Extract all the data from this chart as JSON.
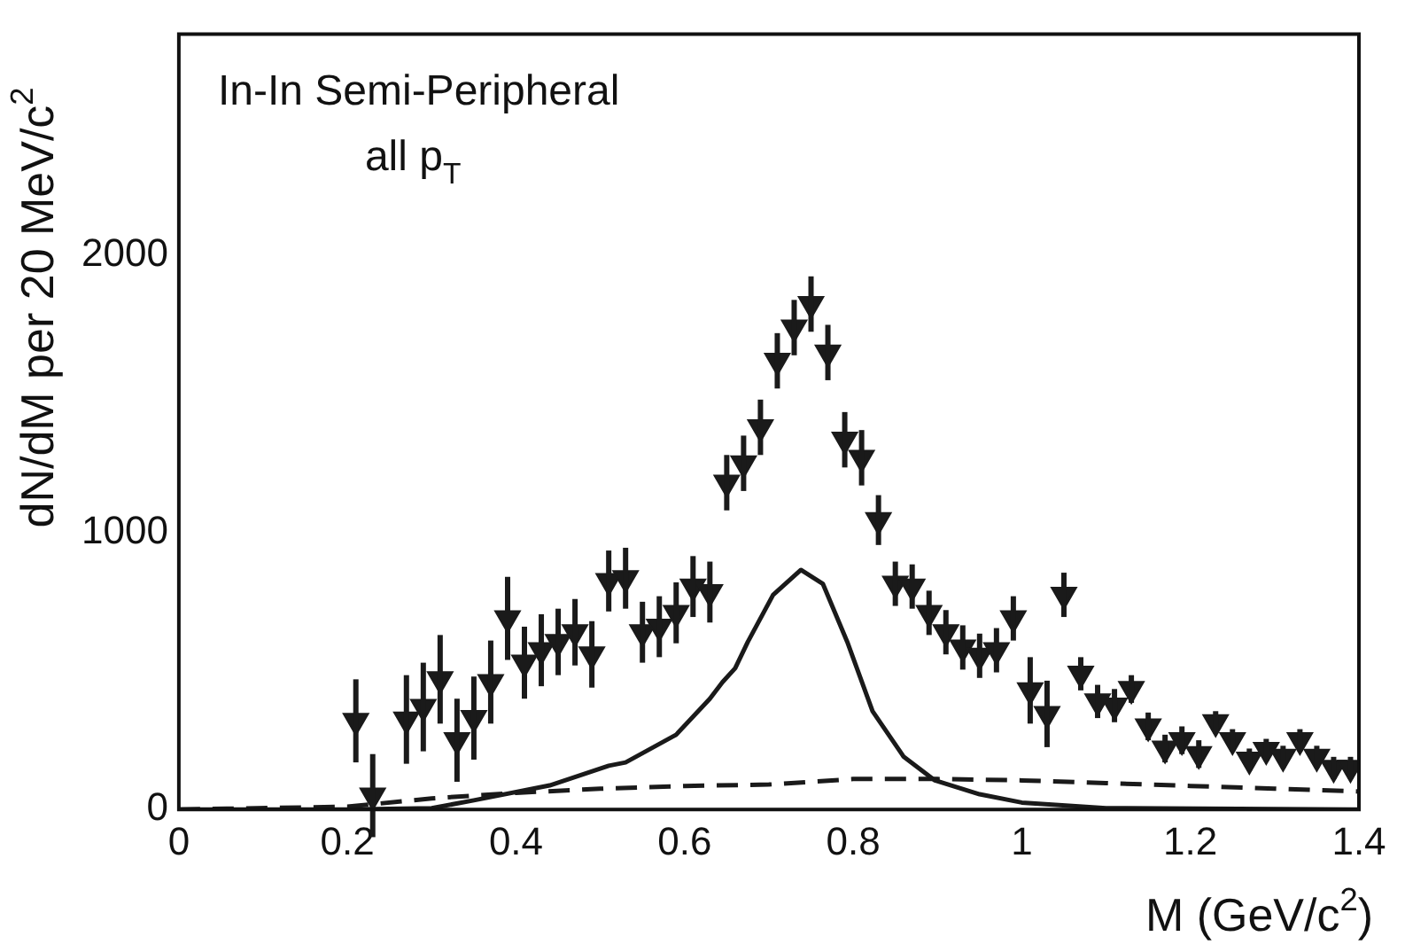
{
  "chart_data": {
    "type": "scatter",
    "xlabel": "M (GeV/c$^{2}$)",
    "ylabel": "dN/dM per 20 MeV/c$^{2}$",
    "annotations": [
      "In-In Semi-Peripheral",
      "all p$_{T}$"
    ],
    "xlim": [
      0,
      1.4
    ],
    "xticks": [
      0,
      0.2,
      0.4,
      0.6,
      0.8,
      1,
      1.2,
      1.4
    ],
    "ylim": [
      0,
      2800
    ],
    "yticks": [
      0,
      1000,
      2000
    ],
    "grid": false,
    "legend": false,
    "series": [
      {
        "type": "scatter",
        "color": "#1a1a1a",
        "marker": "triangle",
        "x": [
          0.21,
          0.23,
          0.27,
          0.29,
          0.31,
          0.33,
          0.35,
          0.37,
          0.39,
          0.41,
          0.43,
          0.45,
          0.47,
          0.49,
          0.51,
          0.53,
          0.55,
          0.57,
          0.59,
          0.61,
          0.63,
          0.65,
          0.67,
          0.69,
          0.71,
          0.73,
          0.75,
          0.77,
          0.79,
          0.81,
          0.83,
          0.85,
          0.87,
          0.89,
          0.91,
          0.93,
          0.95,
          0.97,
          0.99,
          1.01,
          1.03,
          1.05,
          1.07,
          1.09,
          1.11,
          1.13,
          1.15,
          1.17,
          1.19,
          1.21,
          1.23,
          1.25,
          1.27,
          1.29,
          1.31,
          1.33,
          1.35,
          1.37,
          1.39
        ],
        "values": [
          320,
          50,
          325,
          370,
          470,
          250,
          330,
          460,
          690,
          530,
          575,
          605,
          640,
          560,
          825,
          835,
          640,
          660,
          710,
          805,
          785,
          1180,
          1250,
          1380,
          1620,
          1740,
          1825,
          1650,
          1335,
          1270,
          1045,
          815,
          805,
          710,
          640,
          585,
          555,
          575,
          690,
          430,
          345,
          775,
          490,
          390,
          375,
          435,
          300,
          220,
          250,
          200,
          315,
          250,
          180,
          215,
          190,
          250,
          190,
          150,
          150
        ],
        "errors": [
          150,
          150,
          160,
          160,
          160,
          150,
          150,
          150,
          150,
          130,
          130,
          120,
          120,
          120,
          110,
          110,
          110,
          110,
          110,
          110,
          110,
          100,
          100,
          100,
          100,
          100,
          100,
          100,
          100,
          100,
          90,
          80,
          80,
          80,
          80,
          80,
          80,
          80,
          80,
          120,
          120,
          80,
          60,
          60,
          60,
          50,
          50,
          50,
          50,
          50,
          40,
          40,
          40,
          40,
          40,
          40,
          40,
          40,
          40
        ]
      },
      {
        "type": "line",
        "color": "#1a1a1a",
        "marker": "none",
        "line_style": "solid",
        "x": [
          0,
          0.2,
          0.3,
          0.35,
          0.44,
          0.51,
          0.53,
          0.59,
          0.63,
          0.645,
          0.66,
          0.675,
          0.705,
          0.738,
          0.764,
          0.793,
          0.823,
          0.86,
          0.897,
          0.95,
          1,
          1.1,
          1.4
        ],
        "values": [
          0,
          0,
          5,
          33,
          87,
          158,
          170,
          270,
          400,
          460,
          510,
          605,
          775,
          865,
          815,
          605,
          355,
          190,
          105,
          55,
          25,
          5,
          0
        ]
      },
      {
        "type": "line",
        "color": "#1a1a1a",
        "marker": "none",
        "line_style": "dashed",
        "x": [
          0,
          0.2,
          0.3,
          0.4,
          0.5,
          0.6,
          0.7,
          0.8,
          0.9,
          1,
          1.1,
          1.2,
          1.3,
          1.4
        ],
        "values": [
          0,
          10,
          40,
          60,
          75,
          85,
          90,
          110,
          110,
          105,
          95,
          85,
          75,
          65
        ]
      }
    ]
  }
}
